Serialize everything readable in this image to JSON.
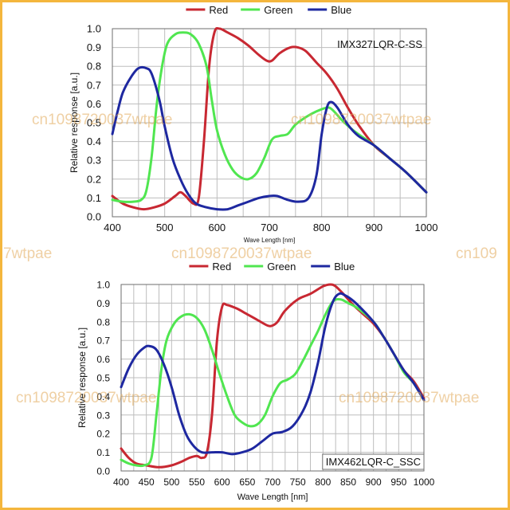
{
  "watermark": {
    "text_1": "cn1098720037wtpae",
    "text_2": "7wtpae",
    "text_3": "cn1098720037wtpae",
    "text_4": "cn109",
    "text_5": "cn1098720037wtpae",
    "text_6": "cn1098720037wtpae",
    "text_7": "cn1098720037wtpae",
    "color": "#e1aa5a"
  },
  "colors": {
    "red": "#c82832",
    "green": "#50e650",
    "blue": "#1e28a0",
    "frame": "#f4b63d"
  },
  "chart_data": [
    {
      "type": "line",
      "title": "IMX327LQR-C-SS",
      "xlabel": "Wave Length [nm]",
      "ylabel": "Relative response [a.u.]",
      "xlim": [
        400,
        1000
      ],
      "ylim": [
        0,
        1.0
      ],
      "xticks": [
        "400",
        "500",
        "600",
        "700",
        "800",
        "900",
        "1000"
      ],
      "yticks": [
        "0.0",
        "0.1",
        "0.2",
        "0.3",
        "0.4",
        "0.5",
        "0.6",
        "0.7",
        "0.8",
        "0.9",
        "1.0"
      ],
      "grid": true,
      "legend": "top",
      "series": [
        {
          "name": "Red",
          "color": "#c82832",
          "points": [
            [
              400,
              0.11
            ],
            [
              420,
              0.07
            ],
            [
              440,
              0.05
            ],
            [
              460,
              0.04
            ],
            [
              480,
              0.05
            ],
            [
              500,
              0.07
            ],
            [
              520,
              0.11
            ],
            [
              530,
              0.13
            ],
            [
              540,
              0.11
            ],
            [
              555,
              0.07
            ],
            [
              565,
              0.1
            ],
            [
              575,
              0.4
            ],
            [
              585,
              0.8
            ],
            [
              595,
              0.98
            ],
            [
              605,
              1.0
            ],
            [
              620,
              0.98
            ],
            [
              640,
              0.95
            ],
            [
              660,
              0.91
            ],
            [
              680,
              0.86
            ],
            [
              695,
              0.83
            ],
            [
              705,
              0.83
            ],
            [
              720,
              0.87
            ],
            [
              740,
              0.9
            ],
            [
              755,
              0.9
            ],
            [
              770,
              0.88
            ],
            [
              790,
              0.82
            ],
            [
              810,
              0.76
            ],
            [
              830,
              0.68
            ],
            [
              850,
              0.58
            ],
            [
              870,
              0.49
            ],
            [
              900,
              0.38
            ],
            [
              930,
              0.31
            ],
            [
              960,
              0.24
            ],
            [
              1000,
              0.13
            ]
          ]
        },
        {
          "name": "Green",
          "color": "#50e650",
          "points": [
            [
              400,
              0.09
            ],
            [
              420,
              0.08
            ],
            [
              440,
              0.08
            ],
            [
              455,
              0.09
            ],
            [
              465,
              0.14
            ],
            [
              475,
              0.32
            ],
            [
              485,
              0.6
            ],
            [
              495,
              0.8
            ],
            [
              505,
              0.92
            ],
            [
              520,
              0.97
            ],
            [
              535,
              0.98
            ],
            [
              550,
              0.97
            ],
            [
              565,
              0.92
            ],
            [
              580,
              0.8
            ],
            [
              590,
              0.62
            ],
            [
              600,
              0.46
            ],
            [
              615,
              0.33
            ],
            [
              630,
              0.25
            ],
            [
              645,
              0.21
            ],
            [
              660,
              0.2
            ],
            [
              675,
              0.23
            ],
            [
              690,
              0.31
            ],
            [
              705,
              0.41
            ],
            [
              720,
              0.43
            ],
            [
              735,
              0.44
            ],
            [
              750,
              0.49
            ],
            [
              770,
              0.53
            ],
            [
              790,
              0.56
            ],
            [
              810,
              0.58
            ],
            [
              820,
              0.57
            ],
            [
              840,
              0.51
            ],
            [
              860,
              0.46
            ],
            [
              880,
              0.42
            ],
            [
              900,
              0.38
            ],
            [
              930,
              0.31
            ],
            [
              960,
              0.24
            ],
            [
              1000,
              0.13
            ]
          ]
        },
        {
          "name": "Blue",
          "color": "#1e28a0",
          "points": [
            [
              400,
              0.44
            ],
            [
              410,
              0.56
            ],
            [
              420,
              0.66
            ],
            [
              435,
              0.74
            ],
            [
              450,
              0.79
            ],
            [
              465,
              0.79
            ],
            [
              475,
              0.76
            ],
            [
              490,
              0.62
            ],
            [
              500,
              0.48
            ],
            [
              515,
              0.31
            ],
            [
              530,
              0.2
            ],
            [
              545,
              0.12
            ],
            [
              560,
              0.07
            ],
            [
              580,
              0.05
            ],
            [
              600,
              0.04
            ],
            [
              620,
              0.04
            ],
            [
              640,
              0.06
            ],
            [
              660,
              0.08
            ],
            [
              680,
              0.1
            ],
            [
              700,
              0.11
            ],
            [
              715,
              0.11
            ],
            [
              735,
              0.09
            ],
            [
              755,
              0.08
            ],
            [
              775,
              0.1
            ],
            [
              790,
              0.22
            ],
            [
              800,
              0.44
            ],
            [
              810,
              0.58
            ],
            [
              818,
              0.61
            ],
            [
              830,
              0.58
            ],
            [
              850,
              0.49
            ],
            [
              870,
              0.43
            ],
            [
              900,
              0.38
            ],
            [
              930,
              0.31
            ],
            [
              960,
              0.24
            ],
            [
              1000,
              0.13
            ]
          ]
        }
      ]
    },
    {
      "type": "line",
      "title": "IMX462LQR-C_SSC",
      "xlabel": "Wave Length [nm]",
      "ylabel": "Relative response [a.u.]",
      "xlim": [
        400,
        1000
      ],
      "ylim": [
        0,
        1.0
      ],
      "xticks": [
        "400",
        "450",
        "500",
        "550",
        "600",
        "650",
        "700",
        "750",
        "800",
        "850",
        "900",
        "950",
        "1000"
      ],
      "yticks": [
        "0.0",
        "0.1",
        "0.2",
        "0.3",
        "0.4",
        "0.5",
        "0.6",
        "0.7",
        "0.8",
        "0.9",
        "1.0"
      ],
      "grid": true,
      "legend": "top",
      "series": [
        {
          "name": "Red",
          "color": "#c82832",
          "points": [
            [
              400,
              0.12
            ],
            [
              415,
              0.07
            ],
            [
              430,
              0.04
            ],
            [
              450,
              0.03
            ],
            [
              475,
              0.02
            ],
            [
              500,
              0.03
            ],
            [
              520,
              0.05
            ],
            [
              535,
              0.07
            ],
            [
              550,
              0.08
            ],
            [
              560,
              0.07
            ],
            [
              570,
              0.1
            ],
            [
              580,
              0.3
            ],
            [
              590,
              0.7
            ],
            [
              600,
              0.88
            ],
            [
              610,
              0.89
            ],
            [
              630,
              0.87
            ],
            [
              650,
              0.84
            ],
            [
              670,
              0.81
            ],
            [
              690,
              0.78
            ],
            [
              700,
              0.78
            ],
            [
              710,
              0.8
            ],
            [
              725,
              0.86
            ],
            [
              750,
              0.92
            ],
            [
              775,
              0.95
            ],
            [
              800,
              0.99
            ],
            [
              815,
              1.0
            ],
            [
              825,
              0.99
            ],
            [
              840,
              0.95
            ],
            [
              860,
              0.89
            ],
            [
              880,
              0.84
            ],
            [
              900,
              0.79
            ],
            [
              920,
              0.72
            ],
            [
              940,
              0.63
            ],
            [
              960,
              0.54
            ],
            [
              980,
              0.48
            ],
            [
              1000,
              0.39
            ]
          ]
        },
        {
          "name": "Green",
          "color": "#50e650",
          "points": [
            [
              400,
              0.06
            ],
            [
              415,
              0.04
            ],
            [
              430,
              0.03
            ],
            [
              445,
              0.03
            ],
            [
              460,
              0.07
            ],
            [
              470,
              0.3
            ],
            [
              480,
              0.55
            ],
            [
              490,
              0.7
            ],
            [
              505,
              0.79
            ],
            [
              520,
              0.83
            ],
            [
              535,
              0.84
            ],
            [
              550,
              0.82
            ],
            [
              565,
              0.76
            ],
            [
              580,
              0.65
            ],
            [
              595,
              0.52
            ],
            [
              610,
              0.4
            ],
            [
              625,
              0.3
            ],
            [
              640,
              0.26
            ],
            [
              655,
              0.24
            ],
            [
              670,
              0.25
            ],
            [
              685,
              0.3
            ],
            [
              700,
              0.4
            ],
            [
              715,
              0.47
            ],
            [
              730,
              0.49
            ],
            [
              745,
              0.52
            ],
            [
              760,
              0.59
            ],
            [
              775,
              0.67
            ],
            [
              790,
              0.75
            ],
            [
              805,
              0.84
            ],
            [
              820,
              0.91
            ],
            [
              835,
              0.92
            ],
            [
              850,
              0.9
            ],
            [
              870,
              0.87
            ],
            [
              900,
              0.8
            ],
            [
              920,
              0.72
            ],
            [
              940,
              0.63
            ],
            [
              960,
              0.53
            ],
            [
              980,
              0.47
            ],
            [
              1000,
              0.38
            ]
          ]
        },
        {
          "name": "Blue",
          "color": "#1e28a0",
          "points": [
            [
              400,
              0.45
            ],
            [
              415,
              0.55
            ],
            [
              430,
              0.62
            ],
            [
              445,
              0.66
            ],
            [
              455,
              0.67
            ],
            [
              470,
              0.65
            ],
            [
              485,
              0.57
            ],
            [
              500,
              0.45
            ],
            [
              515,
              0.3
            ],
            [
              530,
              0.19
            ],
            [
              545,
              0.13
            ],
            [
              560,
              0.1
            ],
            [
              580,
              0.1
            ],
            [
              600,
              0.1
            ],
            [
              620,
              0.09
            ],
            [
              640,
              0.1
            ],
            [
              660,
              0.12
            ],
            [
              680,
              0.16
            ],
            [
              700,
              0.2
            ],
            [
              720,
              0.21
            ],
            [
              740,
              0.24
            ],
            [
              760,
              0.32
            ],
            [
              775,
              0.42
            ],
            [
              790,
              0.58
            ],
            [
              805,
              0.78
            ],
            [
              820,
              0.91
            ],
            [
              832,
              0.95
            ],
            [
              845,
              0.94
            ],
            [
              865,
              0.9
            ],
            [
              900,
              0.8
            ],
            [
              920,
              0.72
            ],
            [
              940,
              0.63
            ],
            [
              960,
              0.54
            ],
            [
              980,
              0.47
            ],
            [
              1000,
              0.38
            ]
          ]
        }
      ]
    }
  ]
}
